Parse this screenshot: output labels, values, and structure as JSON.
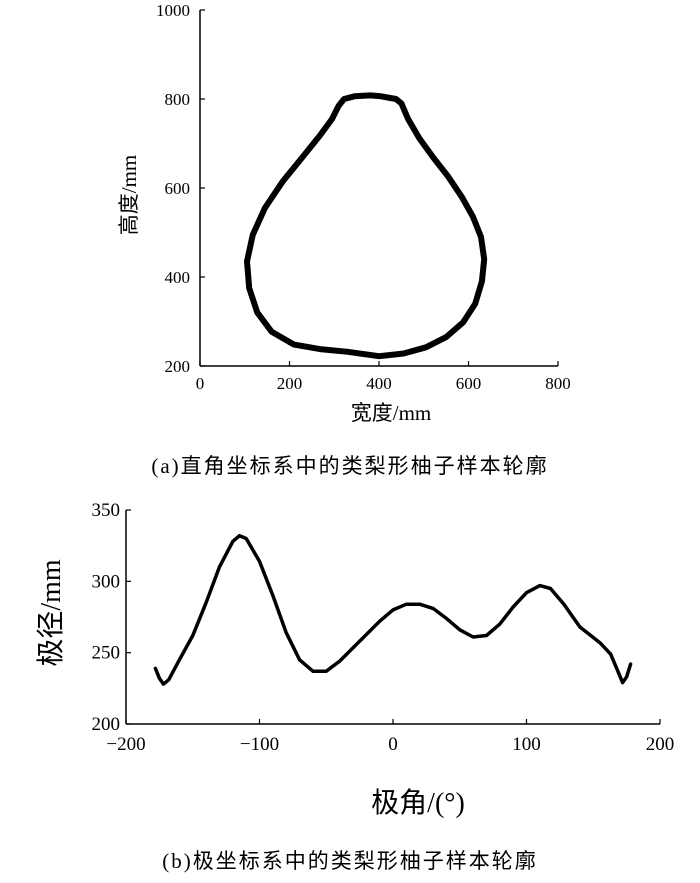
{
  "chart_data": [
    {
      "id": "a",
      "type": "line",
      "caption": "(a)直角坐标系中的类梨形柚子样本轮廓",
      "xlabel": "宽度/mm",
      "ylabel": "高度/mm",
      "xlim": [
        0,
        800
      ],
      "ylim": [
        200,
        1000
      ],
      "xticks": [
        0,
        200,
        400,
        600,
        800
      ],
      "yticks": [
        200,
        400,
        600,
        800,
        1000
      ],
      "grid": false,
      "series": [
        {
          "points": [
            [
              400,
              222
            ],
            [
              455,
              228
            ],
            [
              505,
              242
            ],
            [
              550,
              265
            ],
            [
              588,
              298
            ],
            [
              615,
              340
            ],
            [
              630,
              390
            ],
            [
              635,
              440
            ],
            [
              628,
              490
            ],
            [
              610,
              535
            ],
            [
              585,
              580
            ],
            [
              555,
              625
            ],
            [
              520,
              670
            ],
            [
              490,
              712
            ],
            [
              465,
              755
            ],
            [
              450,
              790
            ],
            [
              438,
              800
            ],
            [
              405,
              806
            ],
            [
              380,
              808
            ],
            [
              345,
              806
            ],
            [
              322,
              800
            ],
            [
              310,
              785
            ],
            [
              295,
              755
            ],
            [
              268,
              718
            ],
            [
              228,
              668
            ],
            [
              185,
              615
            ],
            [
              145,
              555
            ],
            [
              118,
              495
            ],
            [
              105,
              435
            ],
            [
              110,
              375
            ],
            [
              128,
              320
            ],
            [
              160,
              277
            ],
            [
              210,
              248
            ],
            [
              268,
              238
            ],
            [
              330,
              232
            ],
            [
              400,
              222
            ]
          ]
        }
      ]
    },
    {
      "id": "b",
      "type": "line",
      "caption": "(b)极坐标系中的类梨形柚子样本轮廓",
      "xlabel": "极角/(°)",
      "ylabel": "极径/mm",
      "xlim": [
        -200,
        200
      ],
      "ylim": [
        200,
        350
      ],
      "xticks": [
        -200,
        -100,
        0,
        100,
        200
      ],
      "yticks": [
        200,
        250,
        300,
        350
      ],
      "grid": false,
      "series": [
        {
          "points": [
            [
              -178,
              239
            ],
            [
              -175,
              232
            ],
            [
              -172,
              228
            ],
            [
              -168,
              231
            ],
            [
              -160,
              245
            ],
            [
              -150,
              262
            ],
            [
              -140,
              285
            ],
            [
              -130,
              310
            ],
            [
              -120,
              328
            ],
            [
              -115,
              332
            ],
            [
              -110,
              330
            ],
            [
              -100,
              314
            ],
            [
              -90,
              290
            ],
            [
              -80,
              264
            ],
            [
              -70,
              245
            ],
            [
              -60,
              237
            ],
            [
              -50,
              237
            ],
            [
              -40,
              244
            ],
            [
              -25,
              258
            ],
            [
              -10,
              272
            ],
            [
              0,
              280
            ],
            [
              10,
              284
            ],
            [
              20,
              284
            ],
            [
              30,
              281
            ],
            [
              40,
              274
            ],
            [
              50,
              266
            ],
            [
              60,
              261
            ],
            [
              70,
              262
            ],
            [
              80,
              270
            ],
            [
              90,
              282
            ],
            [
              100,
              292
            ],
            [
              110,
              297
            ],
            [
              118,
              295
            ],
            [
              128,
              284
            ],
            [
              140,
              268
            ],
            [
              155,
              257
            ],
            [
              163,
              249
            ],
            [
              168,
              238
            ],
            [
              172,
              229
            ],
            [
              175,
              233
            ],
            [
              178,
              242
            ]
          ]
        }
      ]
    }
  ]
}
